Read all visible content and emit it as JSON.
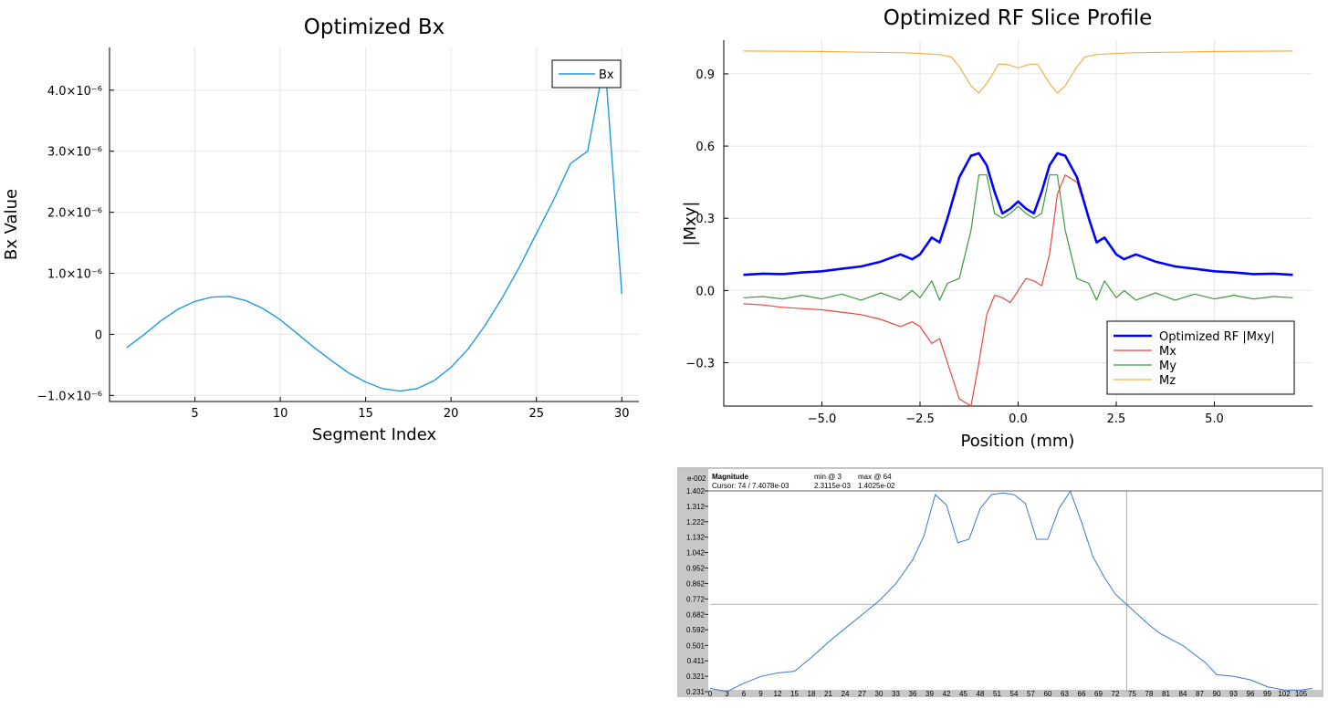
{
  "chart_data": [
    {
      "type": "line",
      "title": "Optimized Bx",
      "xlabel": "Segment Index",
      "ylabel": "Bx Value",
      "xlim": [
        0,
        31
      ],
      "ylim": [
        -1.1e-06,
        4.7e-06
      ],
      "grid": true,
      "legend_position": "top-right",
      "x_ticks": [
        5,
        10,
        15,
        20,
        25,
        30
      ],
      "x_tick_labels": [
        "5",
        "10",
        "15",
        "20",
        "25",
        "30"
      ],
      "y_ticks": [
        -1e-06,
        0,
        1e-06,
        2e-06,
        3e-06,
        4e-06
      ],
      "y_tick_labels": [
        "−1.0×10⁻⁶",
        "0",
        "1.0×10⁻⁶",
        "2.0×10⁻⁶",
        "3.0×10⁻⁶",
        "4.0×10⁻⁶"
      ],
      "series": [
        {
          "name": "Bx",
          "color": "#1f9be0",
          "x": [
            1,
            2,
            3,
            4,
            5,
            6,
            7,
            8,
            9,
            10,
            11,
            12,
            13,
            14,
            15,
            16,
            17,
            18,
            19,
            20,
            21,
            22,
            23,
            24,
            25,
            26,
            27,
            28,
            29,
            30
          ],
          "y": [
            -2.2e-07,
            -1e-08,
            2.2e-07,
            4.1e-07,
            5.4e-07,
            6.1e-07,
            6.2e-07,
            5.5e-07,
            4.2e-07,
            2.4e-07,
            1e-08,
            -2.2e-07,
            -4.3e-07,
            -6.3e-07,
            -7.8e-07,
            -8.9e-07,
            -9.3e-07,
            -8.9e-07,
            -7.6e-07,
            -5.4e-07,
            -2.4e-07,
            1.5e-07,
            6e-07,
            1.1e-06,
            1.65e-06,
            2.2e-06,
            2.8e-06,
            3e-06,
            4.5e-06,
            6.6e-07
          ]
        }
      ]
    },
    {
      "type": "line",
      "title": "Optimized RF Slice Profile",
      "xlabel": "Position (mm)",
      "ylabel": "|Mxy|",
      "xlim": [
        -7.5,
        7.5
      ],
      "ylim": [
        -0.48,
        1.04
      ],
      "grid": true,
      "legend_position": "bottom-right",
      "x_ticks": [
        -5,
        -2.5,
        0,
        2.5,
        5
      ],
      "x_tick_labels": [
        "−5.0",
        "−2.5",
        "0.0",
        "2.5",
        "5.0"
      ],
      "y_ticks": [
        -0.3,
        0,
        0.3,
        0.6,
        0.9
      ],
      "y_tick_labels": [
        "−0.3",
        "0.0",
        "0.3",
        "0.6",
        "0.9"
      ],
      "series": [
        {
          "name": "Optimized RF |Mxy|",
          "color": "#0000ff",
          "x": [
            -7,
            -6.5,
            -6,
            -5.5,
            -5,
            -4.5,
            -4,
            -3.5,
            -3,
            -2.7,
            -2.5,
            -2.2,
            -2,
            -1.8,
            -1.5,
            -1.2,
            -1,
            -0.8,
            -0.6,
            -0.4,
            -0.2,
            0,
            0.2,
            0.4,
            0.6,
            0.8,
            1,
            1.2,
            1.5,
            1.8,
            2,
            2.2,
            2.5,
            2.7,
            3,
            3.5,
            4,
            4.5,
            5,
            5.5,
            6,
            6.5,
            7
          ],
          "y": [
            0.065,
            0.07,
            0.068,
            0.075,
            0.08,
            0.09,
            0.1,
            0.12,
            0.15,
            0.13,
            0.15,
            0.22,
            0.2,
            0.3,
            0.47,
            0.56,
            0.57,
            0.52,
            0.41,
            0.32,
            0.34,
            0.37,
            0.34,
            0.32,
            0.41,
            0.52,
            0.57,
            0.56,
            0.47,
            0.3,
            0.2,
            0.22,
            0.15,
            0.13,
            0.15,
            0.12,
            0.1,
            0.09,
            0.08,
            0.075,
            0.068,
            0.07,
            0.065
          ]
        },
        {
          "name": "Mx",
          "color": "#e8463c",
          "x": [
            -7,
            -6.5,
            -6,
            -5.5,
            -5,
            -4.5,
            -4,
            -3.5,
            -3,
            -2.7,
            -2.5,
            -2.2,
            -2,
            -1.8,
            -1.5,
            -1.2,
            -1,
            -0.8,
            -0.6,
            -0.4,
            -0.2,
            0,
            0.2,
            0.4,
            0.6,
            0.8,
            1,
            1.2,
            1.5,
            1.8,
            2,
            2.2,
            2.5,
            2.7,
            3,
            3.5,
            4,
            4.5,
            5,
            5.5,
            6,
            6.5,
            7
          ],
          "y": [
            -0.055,
            -0.06,
            -0.07,
            -0.075,
            -0.08,
            -0.09,
            -0.1,
            -0.12,
            -0.15,
            -0.13,
            -0.15,
            -0.22,
            -0.2,
            -0.3,
            -0.45,
            -0.48,
            -0.3,
            -0.1,
            -0.02,
            -0.03,
            -0.05,
            0,
            0.05,
            0.04,
            0.02,
            0.15,
            0.4,
            0.48,
            0.45,
            0.3,
            0.2,
            0.22,
            0.15,
            0.13,
            0.15,
            0.12,
            0.1,
            0.09,
            0.08,
            0.075,
            0.068,
            0.07,
            0.065
          ]
        },
        {
          "name": "My",
          "color": "#3c9a3c",
          "x": [
            -7,
            -6.5,
            -6,
            -5.5,
            -5,
            -4.5,
            -4,
            -3.5,
            -3,
            -2.7,
            -2.5,
            -2.2,
            -2,
            -1.8,
            -1.5,
            -1.2,
            -1,
            -0.8,
            -0.6,
            -0.4,
            -0.2,
            0,
            0.2,
            0.4,
            0.6,
            0.8,
            1,
            1.2,
            1.5,
            1.8,
            2,
            2.2,
            2.5,
            2.7,
            3,
            3.5,
            4,
            4.5,
            5,
            5.5,
            6,
            6.5,
            7
          ],
          "y": [
            -0.03,
            -0.025,
            -0.035,
            -0.02,
            -0.035,
            -0.015,
            -0.04,
            -0.01,
            -0.04,
            0,
            -0.03,
            0.04,
            -0.04,
            0.03,
            0.05,
            0.25,
            0.48,
            0.48,
            0.32,
            0.3,
            0.32,
            0.35,
            0.32,
            0.3,
            0.32,
            0.48,
            0.48,
            0.25,
            0.05,
            0.03,
            -0.04,
            0.04,
            -0.03,
            0,
            -0.04,
            -0.01,
            -0.04,
            -0.015,
            -0.035,
            -0.02,
            -0.035,
            -0.025,
            -0.03
          ]
        },
        {
          "name": "Mz",
          "color": "#f5b04a",
          "x": [
            -7,
            -6,
            -5,
            -4,
            -3,
            -2.5,
            -2,
            -1.7,
            -1.5,
            -1.2,
            -1,
            -0.8,
            -0.5,
            -0.3,
            0,
            0.3,
            0.5,
            0.8,
            1,
            1.2,
            1.5,
            1.7,
            2,
            2.5,
            3,
            4,
            5,
            6,
            7
          ],
          "y": [
            0.995,
            0.994,
            0.993,
            0.99,
            0.988,
            0.985,
            0.98,
            0.97,
            0.93,
            0.85,
            0.82,
            0.86,
            0.94,
            0.94,
            0.925,
            0.94,
            0.94,
            0.86,
            0.82,
            0.85,
            0.93,
            0.97,
            0.98,
            0.985,
            0.988,
            0.99,
            0.993,
            0.994,
            0.995
          ]
        }
      ]
    },
    {
      "type": "line",
      "title": "Magnitude",
      "cursor_text": "Cursor: 74 / 7.4078e-03",
      "min_label": "min @ 3",
      "min_value": "2.3115e-03",
      "max_label": "max @ 64",
      "max_value": "1.4025e-02",
      "scale_label": "e-002",
      "xlim": [
        0,
        108
      ],
      "ylim": [
        0.231,
        1.402
      ],
      "cursor_x": 74,
      "cursor_y": 0.7408,
      "x_ticks": [
        0,
        3,
        6,
        9,
        12,
        15,
        18,
        21,
        24,
        27,
        30,
        33,
        36,
        39,
        42,
        45,
        48,
        51,
        54,
        57,
        60,
        63,
        66,
        69,
        72,
        75,
        78,
        81,
        84,
        87,
        90,
        93,
        96,
        99,
        102,
        105
      ],
      "x_tick_labels": [
        "0",
        "3",
        "6",
        "9",
        "12",
        "15",
        "18",
        "21",
        "24",
        "27",
        "30",
        "33",
        "36",
        "39",
        "42",
        "45",
        "48",
        "51",
        "54",
        "57",
        "60",
        "63",
        "66",
        "69",
        "72",
        "75",
        "78",
        "81",
        "84",
        "87",
        "90",
        "93",
        "96",
        "99",
        "102",
        "105"
      ],
      "y_ticks": [
        0.231,
        0.321,
        0.411,
        0.501,
        0.592,
        0.682,
        0.772,
        0.862,
        0.952,
        1.042,
        1.132,
        1.222,
        1.312,
        1.402
      ],
      "y_tick_labels": [
        "0.231",
        "0.321",
        "0.411",
        "0.501",
        "0.592",
        "0.682",
        "0.772",
        "0.862",
        "0.952",
        "1.042",
        "1.132",
        "1.222",
        "1.312",
        "1.402"
      ],
      "series": [
        {
          "color": "#3c78c8",
          "x": [
            0,
            3,
            6,
            9,
            12,
            15,
            18,
            21,
            24,
            27,
            30,
            33,
            36,
            38,
            40,
            42,
            44,
            46,
            48,
            50,
            52,
            54,
            56,
            58,
            60,
            62,
            64,
            66,
            68,
            70,
            72,
            74,
            76,
            78,
            80,
            84,
            88,
            90,
            93,
            96,
            99,
            102,
            105,
            107
          ],
          "y": [
            0.25,
            0.231,
            0.28,
            0.32,
            0.34,
            0.35,
            0.43,
            0.52,
            0.6,
            0.68,
            0.76,
            0.86,
            1.0,
            1.14,
            1.38,
            1.32,
            1.1,
            1.12,
            1.3,
            1.38,
            1.39,
            1.38,
            1.33,
            1.12,
            1.12,
            1.3,
            1.4,
            1.22,
            1.02,
            0.9,
            0.8,
            0.74,
            0.68,
            0.62,
            0.57,
            0.5,
            0.4,
            0.33,
            0.32,
            0.3,
            0.26,
            0.24,
            0.24,
            0.25
          ]
        }
      ]
    }
  ]
}
